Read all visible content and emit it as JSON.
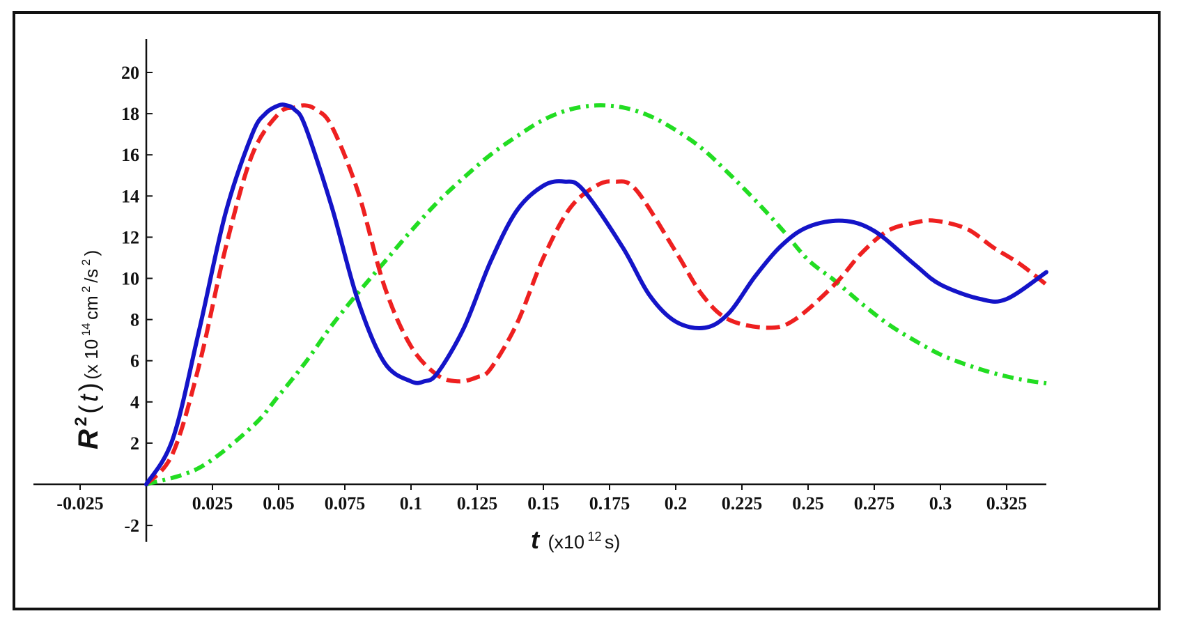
{
  "chart_data": {
    "type": "line",
    "title": "",
    "xlabel": {
      "symbol": "t",
      "unit_prefix": "(x10",
      "unit_exp": "12",
      "unit_suffix": " s)"
    },
    "ylabel": {
      "symbol": "R",
      "sup": "2",
      "arg_open": "(",
      "arg": "t",
      "arg_close": ")",
      "unit_prefix": " (x 10",
      "unit_exp1": "14",
      "unit_mid": " cm",
      "unit_exp2": "2",
      "unit_mid2": "/s",
      "unit_exp3": "2",
      "unit_close": ")"
    },
    "xlim": [
      -0.04,
      0.34
    ],
    "ylim": [
      -2.8,
      21.5
    ],
    "xticks": [
      -0.025,
      0.025,
      0.05,
      0.075,
      0.1,
      0.125,
      0.15,
      0.175,
      0.2,
      0.225,
      0.25,
      0.275,
      0.3,
      0.325
    ],
    "xtick_labels": [
      "-0.025",
      "0.025",
      "0.05",
      "0.075",
      "0.1",
      "0.125",
      "0.15",
      "0.175",
      "0.2",
      "0.225",
      "0.25",
      "0.275",
      "0.3",
      "0.325"
    ],
    "yticks": [
      -2,
      2,
      4,
      6,
      8,
      10,
      12,
      14,
      16,
      18,
      20
    ],
    "ytick_labels": [
      "-2",
      "2",
      "4",
      "6",
      "8",
      "10",
      "12",
      "14",
      "16",
      "18",
      "20"
    ],
    "grid": false,
    "series": [
      {
        "color": "#1414c8",
        "style": "solid",
        "x": [
          0,
          0.01,
          0.02,
          0.03,
          0.04,
          0.045,
          0.05,
          0.053,
          0.056,
          0.06,
          0.07,
          0.08,
          0.09,
          0.1,
          0.105,
          0.11,
          0.12,
          0.13,
          0.14,
          0.15,
          0.158,
          0.165,
          0.18,
          0.19,
          0.2,
          0.211,
          0.22,
          0.23,
          0.24,
          0.25,
          0.263,
          0.275,
          0.29,
          0.3,
          0.315,
          0.325,
          0.34
        ],
        "y": [
          0,
          2.2,
          7.5,
          13.2,
          17.0,
          18.0,
          18.4,
          18.4,
          18.2,
          17.4,
          13.5,
          8.9,
          5.9,
          5.0,
          5.0,
          5.4,
          7.6,
          10.8,
          13.3,
          14.5,
          14.7,
          14.3,
          11.5,
          9.2,
          7.9,
          7.6,
          8.3,
          10.1,
          11.6,
          12.5,
          12.8,
          12.3,
          10.7,
          9.7,
          9.0,
          9.0,
          10.3
        ]
      },
      {
        "color": "#ee2020",
        "style": "dashed",
        "x": [
          0,
          0.01,
          0.02,
          0.03,
          0.04,
          0.05,
          0.056,
          0.06,
          0.064,
          0.07,
          0.08,
          0.09,
          0.1,
          0.11,
          0.118,
          0.125,
          0.13,
          0.14,
          0.15,
          0.16,
          0.17,
          0.177,
          0.185,
          0.2,
          0.21,
          0.22,
          0.235,
          0.245,
          0.26,
          0.27,
          0.28,
          0.29,
          0.298,
          0.31,
          0.32,
          0.33,
          0.34
        ],
        "y": [
          0,
          1.5,
          5.8,
          11.5,
          16.0,
          18.0,
          18.3,
          18.4,
          18.2,
          17.4,
          14.2,
          9.6,
          6.7,
          5.3,
          5.0,
          5.2,
          5.6,
          7.8,
          11.0,
          13.4,
          14.5,
          14.7,
          14.3,
          11.3,
          9.2,
          8.0,
          7.6,
          8.0,
          9.7,
          11.2,
          12.3,
          12.7,
          12.8,
          12.4,
          11.5,
          10.7,
          9.7
        ]
      },
      {
        "color": "#22dd22",
        "style": "dashdot",
        "x": [
          0,
          0.02,
          0.04,
          0.05,
          0.06,
          0.07,
          0.08,
          0.09,
          0.1,
          0.11,
          0.12,
          0.13,
          0.14,
          0.15,
          0.16,
          0.17,
          0.18,
          0.19,
          0.2,
          0.21,
          0.22,
          0.23,
          0.24,
          0.25,
          0.26,
          0.27,
          0.28,
          0.29,
          0.3,
          0.31,
          0.32,
          0.33,
          0.34
        ],
        "y": [
          0,
          0.8,
          2.8,
          4.3,
          5.9,
          7.7,
          9.3,
          10.8,
          12.3,
          13.7,
          14.9,
          16.0,
          16.9,
          17.7,
          18.2,
          18.4,
          18.3,
          17.9,
          17.2,
          16.3,
          15.1,
          13.8,
          12.4,
          10.9,
          9.9,
          8.8,
          7.8,
          7.0,
          6.3,
          5.8,
          5.4,
          5.1,
          4.9
        ]
      }
    ]
  }
}
